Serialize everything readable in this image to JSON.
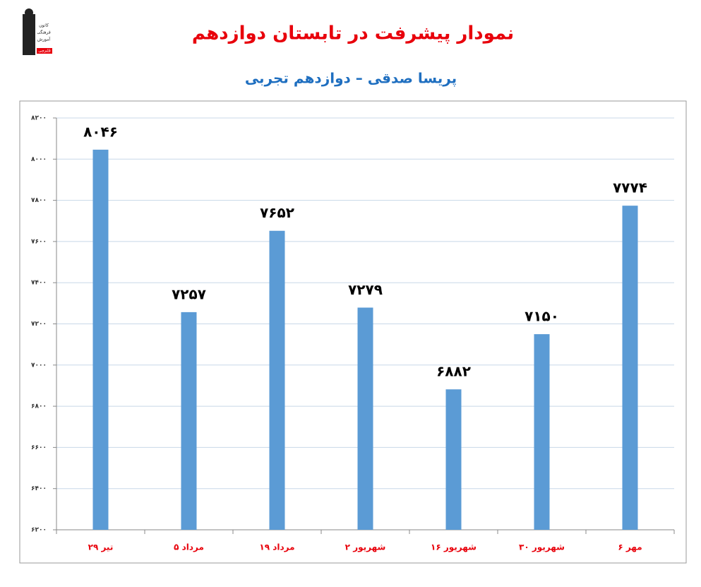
{
  "logo": {
    "lines": [
      "کانون",
      "فرهنگی",
      "آموزش",
      "قلم‌چی"
    ]
  },
  "chart_data": {
    "type": "bar",
    "title": "نمودار پیشرفت در تابستان دوازدهم",
    "subtitle": "پریسا صدقی – دوازدهم تجربی",
    "categories": [
      "۲۹ تیر",
      "۵ مرداد",
      "۱۹ مرداد",
      "۲ شهریور",
      "۱۶ شهریور",
      "۳۰ شهریور",
      "۶ مهر"
    ],
    "values": [
      8046,
      7257,
      7652,
      7279,
      6882,
      7150,
      7774
    ],
    "value_labels": [
      "۸۰۴۶",
      "۷۲۵۷",
      "۷۶۵۲",
      "۷۲۷۹",
      "۶۸۸۲",
      "۷۱۵۰",
      "۷۷۷۴"
    ],
    "color": "#5b9bd5",
    "ylim": [
      6200,
      8200
    ],
    "yticks": [
      {
        "value": 6200,
        "label": "۶۲۰۰"
      },
      {
        "value": 6400,
        "label": "۶۴۰۰"
      },
      {
        "value": 6600,
        "label": "۶۶۰۰"
      },
      {
        "value": 6800,
        "label": "۶۸۰۰"
      },
      {
        "value": 7000,
        "label": "۷۰۰۰"
      },
      {
        "value": 7200,
        "label": "۷۲۰۰"
      },
      {
        "value": 7400,
        "label": "۷۴۰۰"
      },
      {
        "value": 7600,
        "label": "۷۶۰۰"
      },
      {
        "value": 7800,
        "label": "۷۸۰۰"
      },
      {
        "value": 8000,
        "label": "۸۰۰۰"
      },
      {
        "value": 8200,
        "label": "۸۲۰۰"
      }
    ],
    "grid": true
  }
}
